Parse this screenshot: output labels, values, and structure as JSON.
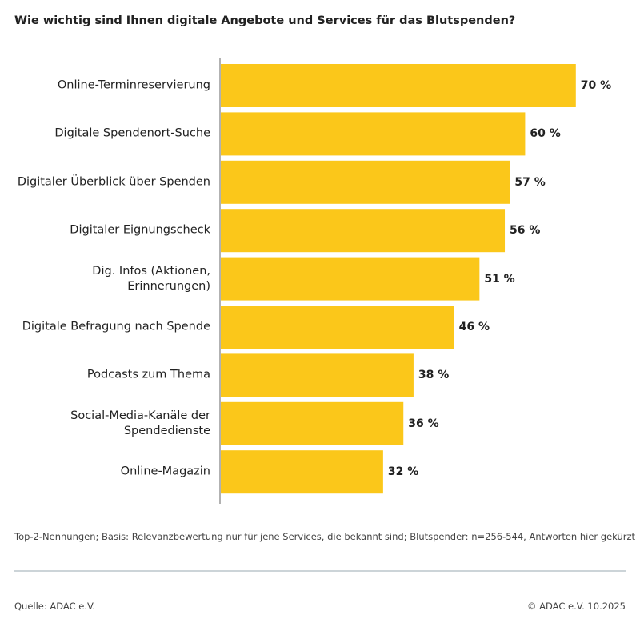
{
  "chart_data": {
    "type": "bar",
    "orientation": "horizontal",
    "title": "Wie wichtig sind Ihnen digitale Angebote und Services für das Blutspenden?",
    "categories": [
      "Online-Terminreservierung",
      "Digitale Spendenort-Suche",
      "Digitaler Überblick über Spenden",
      "Digitaler Eignungscheck",
      "Dig. Infos (Aktionen,\nErinnerungen)",
      "Digitale Befragung nach Spende",
      "Podcasts zum Thema",
      "Social-Media-Kanäle der\nSpendedienste",
      "Online-Magazin"
    ],
    "values": [
      70,
      60,
      57,
      56,
      51,
      46,
      38,
      36,
      32
    ],
    "value_labels": [
      "70 %",
      "60 %",
      "57 %",
      "56 %",
      "51 %",
      "46 %",
      "38 %",
      "36 %",
      "32 %"
    ],
    "color": "#fbc71a",
    "note": "Top-2-Nennungen; Basis: Relevanzbewertung nur für jene Services, die bekannt sind; Blutspender: n=256-544, Antworten hier gekürzt",
    "source": "Quelle: ADAC e.V.",
    "copyright": "© ADAC e.V. 10.2025"
  }
}
